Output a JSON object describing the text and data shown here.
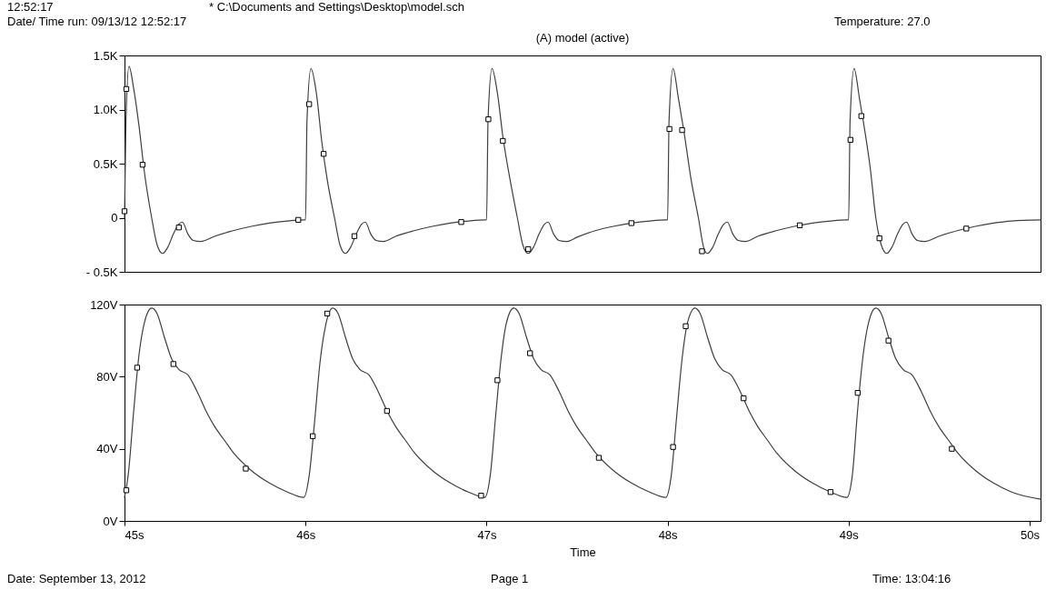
{
  "chart_data": [
    {
      "type": "line",
      "title": "(A) model (active)",
      "annotations": [
        "12:52:17",
        "* C:\\Documents and Settings\\Desktop\\model.sch",
        "Date/ Time run: 09/13/12 12:52:17",
        "Temperature: 27.0"
      ],
      "xlim": [
        45,
        50.06
      ],
      "ylim": [
        -0.5,
        1.5
      ],
      "yticks": [
        {
          "value": -0.5,
          "label": "- 0.5K"
        },
        0,
        {
          "value": 0.5,
          "label": "0.5K"
        },
        {
          "value": 1,
          "label": "1.0K"
        },
        {
          "value": 1.5,
          "label": "1.5K"
        }
      ],
      "tick_labels": "y",
      "series": [
        {
          "type": "line",
          "color": "#404040",
          "x": [
            45.0,
            45.008,
            45.025,
            45.05,
            45.08,
            45.11,
            45.15,
            45.18,
            45.21,
            45.24,
            45.27,
            45.3,
            45.32,
            45.35,
            45.38,
            45.42,
            45.5,
            45.6,
            45.7,
            45.8,
            45.9,
            45.99,
            46.0,
            46.008,
            46.03,
            46.06,
            46.09,
            46.12,
            46.16,
            46.19,
            46.22,
            46.25,
            46.28,
            46.31,
            46.33,
            46.36,
            46.39,
            46.43,
            46.5,
            46.6,
            46.7,
            46.8,
            46.9,
            46.99,
            47.0,
            47.008,
            47.03,
            47.06,
            47.09,
            47.13,
            47.17,
            47.2,
            47.23,
            47.26,
            47.29,
            47.32,
            47.34,
            47.37,
            47.4,
            47.44,
            47.5,
            47.6,
            47.7,
            47.8,
            47.9,
            47.99,
            48.0,
            48.008,
            48.03,
            48.06,
            48.09,
            48.13,
            48.17,
            48.2,
            48.22,
            48.25,
            48.28,
            48.31,
            48.33,
            48.36,
            48.39,
            48.43,
            48.5,
            48.6,
            48.7,
            48.8,
            48.9,
            48.99,
            49.0,
            49.008,
            49.03,
            49.06,
            49.08,
            49.12,
            49.15,
            49.18,
            49.21,
            49.24,
            49.27,
            49.3,
            49.32,
            49.35,
            49.38,
            49.42,
            49.5,
            49.6,
            49.7,
            49.8,
            49.9,
            50.06
          ],
          "values": [
            0.0,
            0.9,
            1.4,
            1.2,
            0.85,
            0.42,
            0.0,
            -0.25,
            -0.33,
            -0.27,
            -0.15,
            -0.06,
            -0.04,
            -0.15,
            -0.21,
            -0.22,
            -0.17,
            -0.12,
            -0.08,
            -0.05,
            -0.03,
            -0.02,
            -0.02,
            0.9,
            1.38,
            1.15,
            0.7,
            0.35,
            0.0,
            -0.25,
            -0.33,
            -0.27,
            -0.15,
            -0.06,
            -0.04,
            -0.15,
            -0.21,
            -0.22,
            -0.17,
            -0.12,
            -0.08,
            -0.05,
            -0.03,
            -0.02,
            -0.02,
            0.9,
            1.38,
            1.15,
            0.75,
            0.35,
            0.0,
            -0.25,
            -0.33,
            -0.27,
            -0.15,
            -0.06,
            -0.04,
            -0.15,
            -0.21,
            -0.22,
            -0.18,
            -0.12,
            -0.08,
            -0.05,
            -0.03,
            -0.02,
            -0.02,
            0.9,
            1.38,
            1.1,
            0.8,
            0.35,
            0.0,
            -0.28,
            -0.33,
            -0.27,
            -0.15,
            -0.06,
            -0.04,
            -0.15,
            -0.21,
            -0.22,
            -0.17,
            -0.12,
            -0.08,
            -0.05,
            -0.03,
            -0.02,
            -0.02,
            0.9,
            1.38,
            1.1,
            0.9,
            0.45,
            0.0,
            -0.25,
            -0.33,
            -0.27,
            -0.15,
            -0.06,
            -0.04,
            -0.15,
            -0.21,
            -0.22,
            -0.17,
            -0.12,
            -0.08,
            -0.05,
            -0.03,
            -0.02
          ]
        },
        {
          "type": "scatter",
          "marker": "square",
          "color": "#000000",
          "x": [
            45.0,
            45.01,
            45.1,
            45.3,
            45.96,
            46.02,
            46.1,
            46.27,
            46.86,
            47.01,
            47.09,
            47.23,
            47.8,
            48.01,
            48.08,
            48.19,
            48.73,
            49.01,
            49.07,
            49.17,
            49.65
          ],
          "values": [
            0.06,
            1.19,
            0.49,
            -0.09,
            -0.02,
            1.05,
            0.59,
            -0.17,
            -0.04,
            0.91,
            0.71,
            -0.29,
            -0.05,
            0.82,
            0.81,
            -0.31,
            -0.07,
            0.72,
            0.94,
            -0.19,
            -0.1
          ]
        }
      ]
    },
    {
      "type": "line",
      "xlabel": "Time",
      "annotations": [
        "Date: September 13, 2012",
        "Page 1",
        "Time: 13:04:16"
      ],
      "xlim": [
        45,
        50.06
      ],
      "xticks": [
        {
          "value": 45,
          "label": "45s"
        },
        {
          "value": 46,
          "label": "46s"
        },
        {
          "value": 47,
          "label": "47s"
        },
        {
          "value": 48,
          "label": "48s"
        },
        {
          "value": 49,
          "label": "49s"
        },
        {
          "value": 50,
          "label": "50s"
        }
      ],
      "ylim": [
        0,
        120
      ],
      "yticks": [
        {
          "value": 0,
          "label": "0V"
        },
        {
          "value": 40,
          "label": "40V"
        },
        {
          "value": 80,
          "label": "80V"
        },
        {
          "value": 120,
          "label": "120V"
        }
      ],
      "series": [
        {
          "type": "line",
          "color": "#404040",
          "x": [
            45.0,
            45.02,
            45.05,
            45.08,
            45.11,
            45.15,
            45.18,
            45.22,
            45.26,
            45.3,
            45.35,
            45.4,
            45.45,
            45.5,
            45.55,
            45.6,
            45.7,
            45.8,
            45.9,
            45.99,
            46.02,
            46.05,
            46.08,
            46.11,
            46.15,
            46.18,
            46.22,
            46.26,
            46.3,
            46.35,
            46.4,
            46.45,
            46.5,
            46.55,
            46.6,
            46.7,
            46.8,
            46.9,
            46.99,
            47.02,
            47.05,
            47.08,
            47.11,
            47.15,
            47.18,
            47.22,
            47.26,
            47.3,
            47.35,
            47.4,
            47.45,
            47.5,
            47.55,
            47.6,
            47.7,
            47.8,
            47.9,
            47.99,
            48.02,
            48.05,
            48.08,
            48.11,
            48.15,
            48.18,
            48.22,
            48.26,
            48.3,
            48.35,
            48.4,
            48.45,
            48.5,
            48.55,
            48.6,
            48.7,
            48.8,
            48.9,
            48.99,
            49.02,
            49.05,
            49.08,
            49.11,
            49.15,
            49.18,
            49.22,
            49.26,
            49.3,
            49.35,
            49.4,
            49.45,
            49.5,
            49.55,
            49.6,
            49.7,
            49.8,
            49.9,
            50.06
          ],
          "values": [
            13,
            25,
            60,
            92,
            110,
            118,
            115,
            102,
            90,
            84,
            81,
            72,
            61,
            52,
            45,
            38,
            28,
            21,
            16,
            13,
            25,
            55,
            88,
            108,
            118,
            115,
            102,
            90,
            84,
            81,
            72,
            61,
            52,
            45,
            38,
            28,
            21,
            16,
            13,
            25,
            58,
            90,
            110,
            118,
            115,
            102,
            90,
            84,
            81,
            72,
            61,
            52,
            45,
            38,
            28,
            21,
            16,
            13,
            25,
            58,
            90,
            110,
            118,
            115,
            102,
            90,
            84,
            81,
            72,
            61,
            52,
            45,
            38,
            28,
            21,
            16,
            13,
            25,
            62,
            92,
            110,
            118,
            115,
            102,
            90,
            84,
            81,
            72,
            61,
            52,
            45,
            38,
            28,
            21,
            16,
            12
          ]
        },
        {
          "type": "scatter",
          "marker": "square",
          "color": "#000000",
          "x": [
            45.01,
            45.07,
            45.27,
            45.67,
            46.04,
            46.12,
            46.45,
            46.97,
            47.06,
            47.24,
            47.62,
            48.03,
            48.1,
            48.42,
            48.9,
            49.05,
            49.22,
            49.57
          ],
          "values": [
            17,
            85,
            87,
            29,
            47,
            115,
            61,
            14,
            78,
            93,
            35,
            41,
            108,
            68,
            16,
            71,
            100,
            40
          ]
        }
      ]
    }
  ]
}
